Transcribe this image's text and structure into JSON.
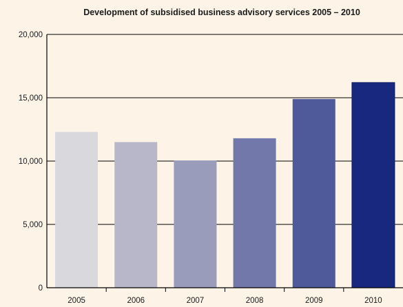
{
  "chart_data": {
    "type": "bar",
    "title": "Development of subsidised business advisory services 2005 – 2010",
    "xlabel": "",
    "ylabel": "",
    "categories": [
      "2005",
      "2006",
      "2007",
      "2008",
      "2009",
      "2010"
    ],
    "values": [
      12300,
      11500,
      10050,
      11800,
      14900,
      16200
    ],
    "ylim": [
      0,
      20000
    ],
    "yticks": [
      0,
      5000,
      10000,
      15000,
      20000
    ],
    "ytick_labels": [
      "0",
      "5,000",
      "10,000",
      "15,000",
      "20,000"
    ],
    "grid": true,
    "legend": "none",
    "colors": {
      "background": "#fdf3e6",
      "bars": [
        "#d9d8dd",
        "#b8b7c9",
        "#9a9cbb",
        "#7278a9",
        "#4f5a9b",
        "#17287e"
      ],
      "axis": "#000000",
      "grid": "#000000"
    }
  }
}
